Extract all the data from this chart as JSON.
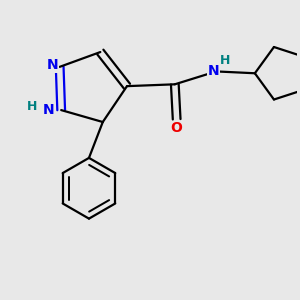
{
  "background_color": "#e8e8e8",
  "bond_color": "#000000",
  "N_color": "#0000ee",
  "O_color": "#ee0000",
  "H_color": "#008080",
  "line_width": 1.6,
  "font_size_atoms": 10,
  "fig_size": [
    3.0,
    3.0
  ],
  "dpi": 100,
  "xlim": [
    -1.0,
    2.2
  ],
  "ylim": [
    -1.9,
    1.3
  ]
}
